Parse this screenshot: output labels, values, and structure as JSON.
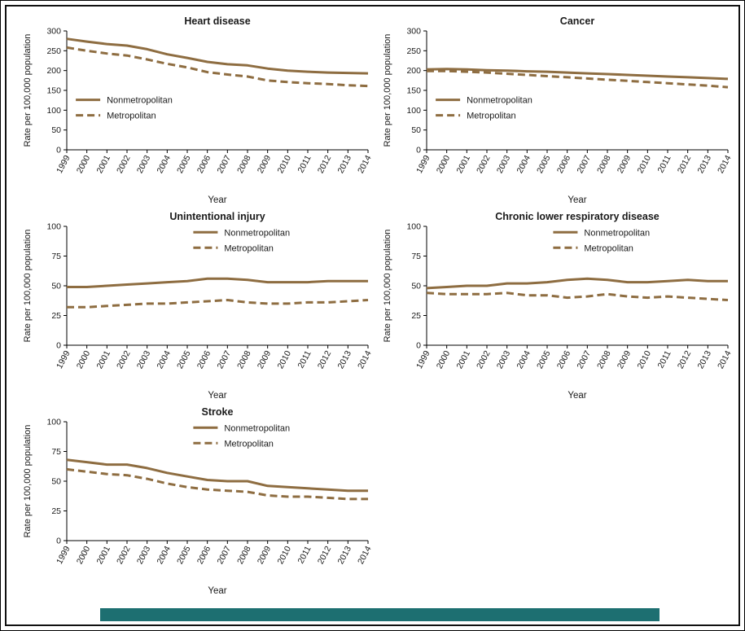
{
  "page": {
    "background": "#ffffff",
    "frame_color": "#000000",
    "footer_bar_color": "#1d6f71",
    "line_color": "#8e6d41",
    "text_color": "#1a1a1a"
  },
  "chart_data": [
    {
      "slug": "heart-disease",
      "type": "line",
      "title": "Heart disease",
      "xlabel": "Year",
      "ylabel": "Rate per 100,000 population",
      "ylim": [
        0,
        300
      ],
      "yticks": [
        0,
        50,
        100,
        150,
        200,
        250,
        300
      ],
      "categories": [
        "1999",
        "2000",
        "2001",
        "2002",
        "2003",
        "2004",
        "2005",
        "2006",
        "2007",
        "2008",
        "2009",
        "2010",
        "2011",
        "2012",
        "2013",
        "2014"
      ],
      "grid": false,
      "legend_position": "middle-left",
      "legend_rel": [
        0.03,
        0.58
      ],
      "series": [
        {
          "name": "Nonmetropolitan",
          "line_style": "solid",
          "values": [
            280,
            273,
            267,
            263,
            254,
            241,
            232,
            222,
            216,
            213,
            205,
            200,
            197,
            195,
            194,
            193
          ]
        },
        {
          "name": "Metropolitan",
          "line_style": "dashed",
          "values": [
            258,
            250,
            243,
            238,
            228,
            217,
            208,
            196,
            190,
            185,
            175,
            171,
            168,
            166,
            163,
            161
          ]
        }
      ]
    },
    {
      "slug": "cancer",
      "type": "line",
      "title": "Cancer",
      "xlabel": "Year",
      "ylabel": "Rate per 100,000 population",
      "ylim": [
        0,
        300
      ],
      "yticks": [
        0,
        50,
        100,
        150,
        200,
        250,
        300
      ],
      "categories": [
        "1999",
        "2000",
        "2001",
        "2002",
        "2003",
        "2004",
        "2005",
        "2006",
        "2007",
        "2008",
        "2009",
        "2010",
        "2011",
        "2012",
        "2013",
        "2014"
      ],
      "grid": false,
      "legend_position": "middle-left",
      "legend_rel": [
        0.03,
        0.58
      ],
      "series": [
        {
          "name": "Nonmetropolitan",
          "line_style": "solid",
          "values": [
            203,
            204,
            203,
            201,
            200,
            198,
            197,
            195,
            193,
            191,
            189,
            187,
            185,
            183,
            181,
            179
          ]
        },
        {
          "name": "Metropolitan",
          "line_style": "dashed",
          "values": [
            199,
            199,
            197,
            195,
            192,
            189,
            186,
            183,
            180,
            177,
            174,
            171,
            168,
            165,
            162,
            158
          ]
        }
      ]
    },
    {
      "slug": "unintentional-injury",
      "type": "line",
      "title": "Unintentional injury",
      "xlabel": "Year",
      "ylabel": "Rate per 100,000 population",
      "ylim": [
        0,
        100
      ],
      "yticks": [
        0,
        25,
        50,
        75,
        100
      ],
      "categories": [
        "1999",
        "2000",
        "2001",
        "2002",
        "2003",
        "2004",
        "2005",
        "2006",
        "2007",
        "2008",
        "2009",
        "2010",
        "2011",
        "2012",
        "2013",
        "2014"
      ],
      "grid": false,
      "legend_position": "top-right",
      "legend_rel": [
        0.42,
        0.05
      ],
      "series": [
        {
          "name": "Nonmetropolitan",
          "line_style": "solid",
          "values": [
            49,
            49,
            50,
            51,
            52,
            53,
            54,
            56,
            56,
            55,
            53,
            53,
            53,
            54,
            54,
            54
          ]
        },
        {
          "name": "Metropolitan",
          "line_style": "dashed",
          "values": [
            32,
            32,
            33,
            34,
            35,
            35,
            36,
            37,
            38,
            36,
            35,
            35,
            36,
            36,
            37,
            38
          ]
        }
      ]
    },
    {
      "slug": "chronic-lower-respiratory-disease",
      "type": "line",
      "title": "Chronic lower respiratory disease",
      "xlabel": "Year",
      "ylabel": "Rate per 100,000 population",
      "ylim": [
        0,
        100
      ],
      "yticks": [
        0,
        25,
        50,
        75,
        100
      ],
      "categories": [
        "1999",
        "2000",
        "2001",
        "2002",
        "2003",
        "2004",
        "2005",
        "2006",
        "2007",
        "2008",
        "2009",
        "2010",
        "2011",
        "2012",
        "2013",
        "2014"
      ],
      "grid": false,
      "legend_position": "top-right",
      "legend_rel": [
        0.42,
        0.05
      ],
      "series": [
        {
          "name": "Nonmetropolitan",
          "line_style": "solid",
          "values": [
            48,
            49,
            50,
            50,
            52,
            52,
            53,
            55,
            56,
            55,
            53,
            53,
            54,
            55,
            54,
            54
          ]
        },
        {
          "name": "Metropolitan",
          "line_style": "dashed",
          "values": [
            44,
            43,
            43,
            43,
            44,
            42,
            42,
            40,
            41,
            43,
            41,
            40,
            41,
            40,
            39,
            38
          ]
        }
      ]
    },
    {
      "slug": "stroke",
      "type": "line",
      "title": "Stroke",
      "xlabel": "Year",
      "ylabel": "Rate per 100,000 population",
      "ylim": [
        0,
        100
      ],
      "yticks": [
        0,
        25,
        50,
        75,
        100
      ],
      "categories": [
        "1999",
        "2000",
        "2001",
        "2002",
        "2003",
        "2004",
        "2005",
        "2006",
        "2007",
        "2008",
        "2009",
        "2010",
        "2011",
        "2012",
        "2013",
        "2014"
      ],
      "grid": false,
      "legend_position": "top-right",
      "legend_rel": [
        0.42,
        0.05
      ],
      "series": [
        {
          "name": "Nonmetropolitan",
          "line_style": "solid",
          "values": [
            68,
            66,
            64,
            64,
            61,
            57,
            54,
            51,
            50,
            50,
            46,
            45,
            44,
            43,
            42,
            42
          ]
        },
        {
          "name": "Metropolitan",
          "line_style": "dashed",
          "values": [
            60,
            58,
            56,
            55,
            52,
            48,
            45,
            43,
            42,
            41,
            38,
            37,
            37,
            36,
            35,
            35
          ]
        }
      ]
    }
  ]
}
